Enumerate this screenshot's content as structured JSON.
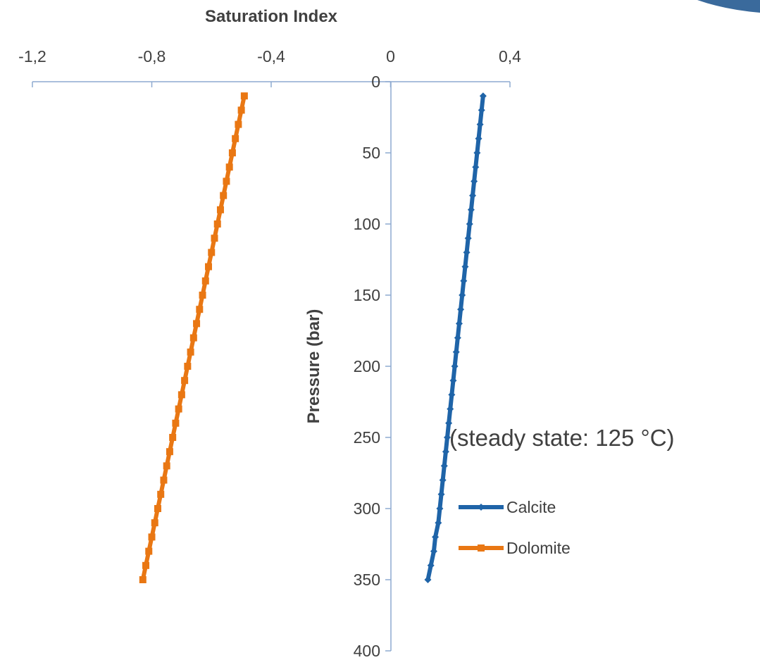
{
  "chart_data": {
    "type": "line",
    "xlabel": "Saturation Index",
    "ylabel": "Pressure (bar)",
    "xlim": [
      -1.2,
      0.4
    ],
    "ylim": [
      0,
      400
    ],
    "y_inverted": true,
    "x_axis_position": "top",
    "x_tick_values": [
      -1.2,
      -0.8,
      -0.4,
      0,
      0.4
    ],
    "x_tick_labels": [
      "-1,2",
      "-0,8",
      "-0,4",
      "0",
      "0,4"
    ],
    "y_tick_values": [
      0,
      50,
      100,
      150,
      200,
      250,
      300,
      350,
      400
    ],
    "y_tick_labels": [
      "0",
      "50",
      "100",
      "150",
      "200",
      "250",
      "300",
      "350",
      "400"
    ],
    "annotation": "(steady state: 125 °C)",
    "legend_position": "right",
    "grid": false,
    "series": [
      {
        "name": "Calcite",
        "color": "#1f64a8",
        "marker": "diamond",
        "points": [
          [
            0.31,
            10
          ],
          [
            0.305,
            20
          ],
          [
            0.3,
            30
          ],
          [
            0.295,
            40
          ],
          [
            0.29,
            50
          ],
          [
            0.285,
            60
          ],
          [
            0.28,
            70
          ],
          [
            0.275,
            80
          ],
          [
            0.27,
            90
          ],
          [
            0.265,
            100
          ],
          [
            0.26,
            110
          ],
          [
            0.255,
            120
          ],
          [
            0.25,
            130
          ],
          [
            0.245,
            140
          ],
          [
            0.24,
            150
          ],
          [
            0.235,
            160
          ],
          [
            0.23,
            170
          ],
          [
            0.225,
            180
          ],
          [
            0.22,
            190
          ],
          [
            0.215,
            200
          ],
          [
            0.21,
            210
          ],
          [
            0.205,
            220
          ],
          [
            0.2,
            230
          ],
          [
            0.195,
            240
          ],
          [
            0.19,
            250
          ],
          [
            0.185,
            260
          ],
          [
            0.18,
            270
          ],
          [
            0.175,
            280
          ],
          [
            0.17,
            290
          ],
          [
            0.165,
            300
          ],
          [
            0.16,
            310
          ],
          [
            0.15,
            320
          ],
          [
            0.145,
            330
          ],
          [
            0.135,
            340
          ],
          [
            0.125,
            350
          ]
        ]
      },
      {
        "name": "Dolomite",
        "color": "#e97713",
        "marker": "square",
        "points": [
          [
            -0.49,
            10
          ],
          [
            -0.5,
            20
          ],
          [
            -0.51,
            30
          ],
          [
            -0.52,
            40
          ],
          [
            -0.53,
            50
          ],
          [
            -0.54,
            60
          ],
          [
            -0.55,
            70
          ],
          [
            -0.56,
            80
          ],
          [
            -0.57,
            90
          ],
          [
            -0.58,
            100
          ],
          [
            -0.59,
            110
          ],
          [
            -0.6,
            120
          ],
          [
            -0.61,
            130
          ],
          [
            -0.62,
            140
          ],
          [
            -0.63,
            150
          ],
          [
            -0.64,
            160
          ],
          [
            -0.65,
            170
          ],
          [
            -0.66,
            180
          ],
          [
            -0.67,
            190
          ],
          [
            -0.68,
            200
          ],
          [
            -0.69,
            210
          ],
          [
            -0.7,
            220
          ],
          [
            -0.71,
            230
          ],
          [
            -0.72,
            240
          ],
          [
            -0.73,
            250
          ],
          [
            -0.74,
            260
          ],
          [
            -0.75,
            270
          ],
          [
            -0.76,
            280
          ],
          [
            -0.77,
            290
          ],
          [
            -0.78,
            300
          ],
          [
            -0.79,
            310
          ],
          [
            -0.8,
            320
          ],
          [
            -0.81,
            330
          ],
          [
            -0.82,
            340
          ],
          [
            -0.83,
            350
          ]
        ]
      }
    ]
  }
}
